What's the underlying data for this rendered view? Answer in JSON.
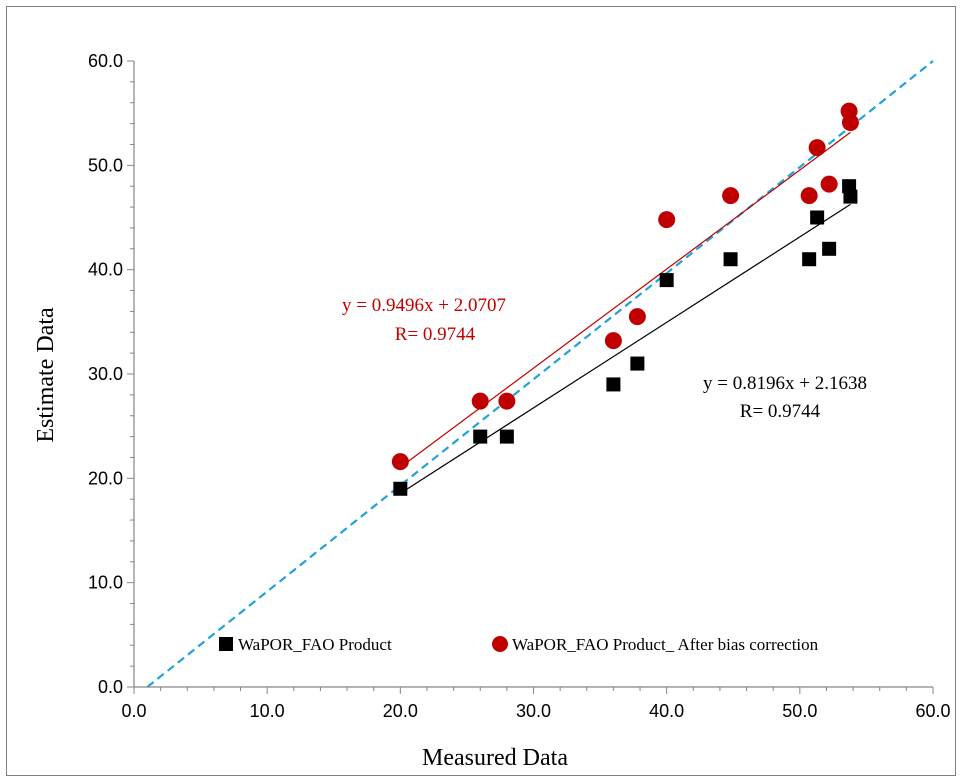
{
  "chart_data": {
    "type": "scatter",
    "xlabel": "Measured Data",
    "ylabel": "Estimate Data",
    "xlim": [
      0,
      60
    ],
    "ylim": [
      0,
      60
    ],
    "xticks": [
      "0.0",
      "10.0",
      "20.0",
      "30.0",
      "40.0",
      "50.0",
      "60.0"
    ],
    "yticks": [
      "0.0",
      "10.0",
      "20.0",
      "30.0",
      "40.0",
      "50.0",
      "60.0"
    ],
    "grid": false,
    "legend_position": "bottom",
    "one_to_one_line": {
      "color": "#1fa3d8",
      "style": "dashed"
    },
    "series": [
      {
        "name": "WaPOR_FAO Product",
        "marker": "square",
        "color": "#000000",
        "x": [
          20,
          26,
          28,
          36,
          37.8,
          40,
          44.8,
          50.7,
          51.3,
          52.2,
          53.7,
          53.8
        ],
        "y": [
          19,
          24,
          24,
          29,
          31,
          39,
          41,
          41,
          45,
          42,
          48,
          47
        ],
        "trendline": {
          "slope": 0.8196,
          "intercept": 2.1638,
          "x_range": [
            20,
            53.8
          ],
          "color": "#000000"
        },
        "equation": "y = 0.8196x + 2.1638",
        "r_label": "R= 0.9744",
        "label_color": "#000000"
      },
      {
        "name": "WaPOR_FAO Product_ After bias correction",
        "marker": "circle",
        "color": "#c00000",
        "x": [
          20,
          26,
          28,
          36,
          37.8,
          40,
          44.8,
          50.7,
          51.3,
          52.2,
          53.7,
          53.8
        ],
        "y": [
          21.6,
          27.4,
          27.4,
          33.2,
          35.5,
          44.8,
          47.1,
          47.1,
          51.7,
          48.2,
          55.2,
          54.1
        ],
        "trendline": {
          "slope": 0.9496,
          "intercept": 2.0707,
          "x_range": [
            20,
            53.8
          ],
          "color": "#c00000"
        },
        "equation": "y = 0.9496x + 2.0707",
        "r_label": "R= 0.9744",
        "label_color": "#c00000"
      }
    ]
  }
}
